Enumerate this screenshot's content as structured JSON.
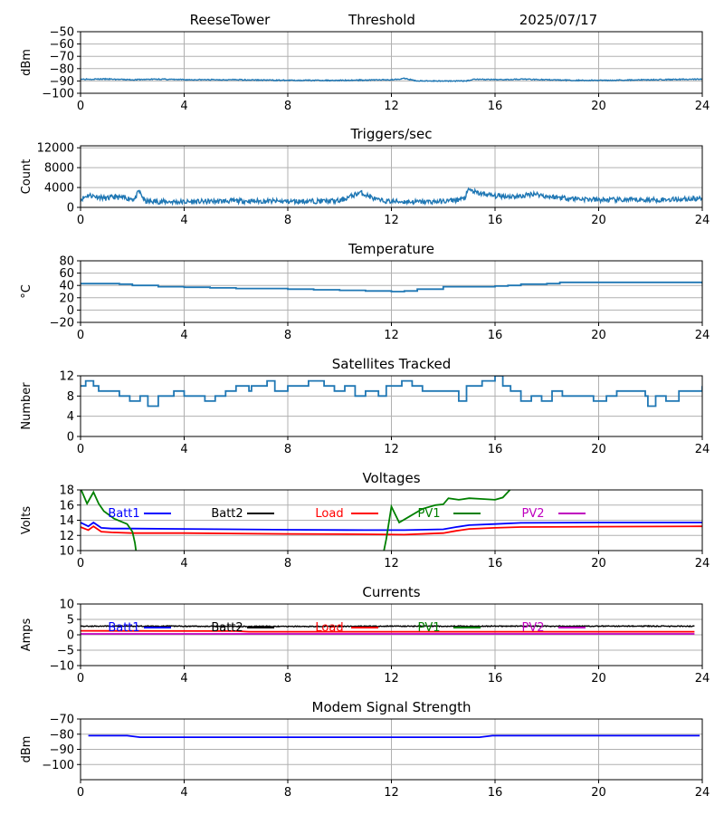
{
  "header": {
    "site": "ReeseTower",
    "mode": "Threshold",
    "date": "2025/07/17"
  },
  "legend_labels": [
    "Batt1",
    "Batt2",
    "Load",
    "PV1",
    "PV2"
  ],
  "colors": {
    "default": "#1f77b4",
    "grid": "#b0b0b0",
    "blue": "#0000ff",
    "black": "#000000",
    "red": "#ff0000",
    "green": "#008000",
    "magenta": "#bf00bf"
  },
  "chart_data": [
    {
      "id": "threshold",
      "type": "line",
      "title": "",
      "xlabel": "",
      "ylabel": "dBm",
      "xlim": [
        0,
        24
      ],
      "ylim": [
        -100,
        -50
      ],
      "xticks": [
        0,
        4,
        8,
        12,
        16,
        20,
        24
      ],
      "yticks": [
        -100,
        -90,
        -80,
        -70,
        -60,
        -50
      ],
      "grid": true,
      "legend": "none",
      "series": [
        {
          "color": "#1f77b4",
          "noise": 0.4,
          "x": [
            0,
            1,
            2,
            3,
            4,
            6,
            8,
            10,
            12,
            12.5,
            13,
            14,
            14.9,
            15.2,
            16,
            17,
            18,
            19,
            20,
            22,
            24
          ],
          "y": [
            -88.5,
            -88.5,
            -89,
            -88.5,
            -89,
            -89,
            -89.5,
            -89.5,
            -89,
            -88,
            -90,
            -90,
            -90,
            -88.5,
            -89,
            -88.5,
            -89,
            -89.5,
            -89.5,
            -89,
            -88.5
          ]
        }
      ]
    },
    {
      "id": "triggers",
      "type": "line",
      "title": "Triggers/sec",
      "xlabel": "",
      "ylabel": "Count",
      "xlim": [
        0,
        24
      ],
      "ylim": [
        0,
        12400
      ],
      "xticks": [
        0,
        4,
        8,
        12,
        16,
        20,
        24
      ],
      "yticks": [
        0,
        4000,
        8000,
        12000
      ],
      "grid": true,
      "legend": "none",
      "series": [
        {
          "color": "#1f77b4",
          "noise": 500,
          "seed": 11,
          "x": [
            0,
            0.3,
            1,
            1.3,
            2.1,
            2.25,
            2.5,
            4,
            6,
            8,
            10,
            10.8,
            11.5,
            12,
            13,
            14,
            14.8,
            15,
            15.3,
            16,
            17,
            17.5,
            18,
            19,
            20,
            22,
            24
          ],
          "y": [
            1600,
            2500,
            1800,
            2100,
            1700,
            3300,
            1200,
            1100,
            1300,
            1200,
            1300,
            3000,
            1400,
            1200,
            1100,
            1200,
            1700,
            3600,
            2900,
            2300,
            2200,
            2800,
            2200,
            1800,
            1500,
            1500,
            1800
          ]
        }
      ]
    },
    {
      "id": "temperature",
      "type": "line",
      "title": "Temperature",
      "xlabel": "",
      "ylabel": "°C",
      "xlim": [
        0,
        24
      ],
      "ylim": [
        -20,
        80
      ],
      "xticks": [
        0,
        4,
        8,
        12,
        16,
        20,
        24
      ],
      "yticks": [
        -20,
        0,
        20,
        40,
        60,
        80
      ],
      "grid": true,
      "legend": "none",
      "series": [
        {
          "color": "#1f77b4",
          "step": true,
          "x": [
            0,
            1.5,
            2,
            3,
            4,
            5,
            6,
            8,
            9,
            10,
            11,
            12,
            12.5,
            13,
            14,
            16,
            16.5,
            17,
            18,
            18.5,
            20,
            22,
            23.5,
            24
          ],
          "y": [
            43,
            42,
            40,
            38,
            37,
            36,
            35,
            34,
            33,
            32,
            31,
            30,
            31,
            34,
            38,
            39,
            40,
            42,
            43,
            45,
            45,
            45,
            45,
            43
          ]
        }
      ]
    },
    {
      "id": "satellites",
      "type": "line",
      "title": "Satellites Tracked",
      "xlabel": "",
      "ylabel": "Number",
      "xlim": [
        0,
        24
      ],
      "ylim": [
        0,
        12
      ],
      "xticks": [
        0,
        4,
        8,
        12,
        16,
        20,
        24
      ],
      "yticks": [
        0,
        4,
        8,
        12
      ],
      "grid": true,
      "legend": "none",
      "series": [
        {
          "color": "#1f77b4",
          "step": true,
          "x": [
            0,
            0.2,
            0.5,
            0.7,
            1,
            1.3,
            1.5,
            1.9,
            2.3,
            2.6,
            3,
            3.6,
            4,
            4.2,
            4.8,
            5.2,
            5.4,
            5.6,
            6,
            6.5,
            6.6,
            6.8,
            7.2,
            7.5,
            8,
            8.5,
            8.8,
            9.4,
            9.8,
            10.2,
            10.6,
            11,
            11.5,
            11.8,
            12,
            12.4,
            12.8,
            13.2,
            13.6,
            14.2,
            14.6,
            14.9,
            15.5,
            16,
            16.3,
            16.6,
            17,
            17.4,
            17.8,
            18.2,
            18.6,
            19,
            19.4,
            19.8,
            20.3,
            20.7,
            21.5,
            21.8,
            21.9,
            22.2,
            22.6,
            23.1,
            23.5,
            24
          ],
          "y": [
            10,
            11,
            10,
            9,
            9,
            9,
            8,
            7,
            8,
            6,
            8,
            9,
            8,
            8,
            7,
            8,
            8,
            9,
            10,
            9,
            10,
            10,
            11,
            9,
            10,
            10,
            11,
            10,
            9,
            10,
            8,
            9,
            8,
            10,
            10,
            11,
            10,
            9,
            9,
            9,
            7,
            10,
            11,
            12,
            10,
            9,
            7,
            8,
            7,
            9,
            8,
            8,
            8,
            7,
            8,
            9,
            9,
            8,
            6,
            8,
            7,
            9,
            9,
            10
          ]
        }
      ]
    },
    {
      "id": "voltages",
      "type": "line",
      "title": "Voltages",
      "xlabel": "",
      "ylabel": "Volts",
      "xlim": [
        0,
        24
      ],
      "ylim": [
        10,
        18
      ],
      "xticks": [
        0,
        4,
        8,
        12,
        16,
        20,
        24
      ],
      "yticks": [
        10,
        12,
        14,
        16,
        18
      ],
      "grid": true,
      "legend": "inside-top",
      "series": [
        {
          "name": "Batt1",
          "color": "#0000ff",
          "x": [
            0,
            0.3,
            0.5,
            0.8,
            1.2,
            2,
            4,
            8,
            11,
            12.5,
            14,
            14.5,
            15,
            16,
            17,
            20,
            24
          ],
          "y": [
            13.7,
            13.2,
            13.7,
            13.0,
            12.9,
            12.9,
            12.85,
            12.75,
            12.7,
            12.7,
            12.8,
            13.1,
            13.35,
            13.5,
            13.65,
            13.7,
            13.7
          ]
        },
        {
          "name": "Load",
          "color": "#ff0000",
          "x": [
            0,
            0.3,
            0.5,
            0.8,
            1.2,
            2,
            4,
            8,
            11,
            12.5,
            14,
            14.5,
            15,
            16,
            17,
            20,
            24
          ],
          "y": [
            13.1,
            12.7,
            13.2,
            12.5,
            12.4,
            12.3,
            12.3,
            12.2,
            12.15,
            12.1,
            12.3,
            12.6,
            12.85,
            13.0,
            13.1,
            13.15,
            13.2
          ]
        },
        {
          "name": "PV1",
          "color": "#008000",
          "x": [
            0,
            0.25,
            0.5,
            0.7,
            0.9,
            1.3,
            1.8,
            2.0,
            2.1,
            2.15
          ],
          "y": [
            18.2,
            16.2,
            17.7,
            16.2,
            15.2,
            14.2,
            13.5,
            12.5,
            11.0,
            9.8
          ]
        },
        {
          "name": "PV1",
          "color": "#008000",
          "x": [
            11.7,
            11.8,
            12.0,
            12.3,
            12.7,
            13.2,
            13.7,
            14.0,
            14.2,
            14.6,
            15.0,
            15.5,
            16.0,
            16.3,
            16.6
          ],
          "y": [
            9.8,
            11.5,
            15.8,
            13.7,
            14.5,
            15.5,
            16.0,
            16.1,
            16.9,
            16.7,
            16.9,
            16.8,
            16.7,
            17.0,
            18.1
          ]
        }
      ]
    },
    {
      "id": "currents",
      "type": "line",
      "title": "Currents",
      "xlabel": "",
      "ylabel": "Amps",
      "xlim": [
        0,
        24
      ],
      "ylim": [
        -10,
        10
      ],
      "xticks": [
        0,
        4,
        8,
        12,
        16,
        20,
        24
      ],
      "yticks": [
        -10,
        -5,
        0,
        5,
        10
      ],
      "grid": true,
      "legend": "inside-top",
      "series": [
        {
          "name": "Batt2",
          "color": "#000000",
          "noise": 0.15,
          "seed": 5,
          "x": [
            0,
            4,
            8,
            12,
            16,
            20,
            23.7
          ],
          "y": [
            2.8,
            2.8,
            2.7,
            2.8,
            2.8,
            2.8,
            2.8
          ]
        },
        {
          "name": "Load",
          "color": "#ff0000",
          "x": [
            0,
            6,
            6.5,
            12,
            16,
            20,
            23.7
          ],
          "y": [
            1.3,
            1.2,
            1.0,
            1.0,
            1.0,
            1.0,
            1.0
          ]
        },
        {
          "name": "PV2",
          "color": "#bf00bf",
          "x": [
            0,
            23.7
          ],
          "y": [
            0.3,
            0.3
          ]
        }
      ]
    },
    {
      "id": "modem",
      "type": "line",
      "title": "Modem Signal Strength",
      "xlabel": "",
      "ylabel": "dBm",
      "xlim": [
        0,
        24
      ],
      "ylim": [
        -110,
        -70
      ],
      "xticks": [
        0,
        4,
        8,
        12,
        16,
        20,
        24
      ],
      "yticks": [
        -100,
        -90,
        -80,
        -70
      ],
      "grid": true,
      "legend": "none",
      "series": [
        {
          "color": "#0000ff",
          "x": [
            0.3,
            1.8,
            2.3,
            15.4,
            15.9,
            23.9
          ],
          "y": [
            -81,
            -81,
            -82,
            -82,
            -81,
            -81
          ]
        }
      ]
    }
  ]
}
